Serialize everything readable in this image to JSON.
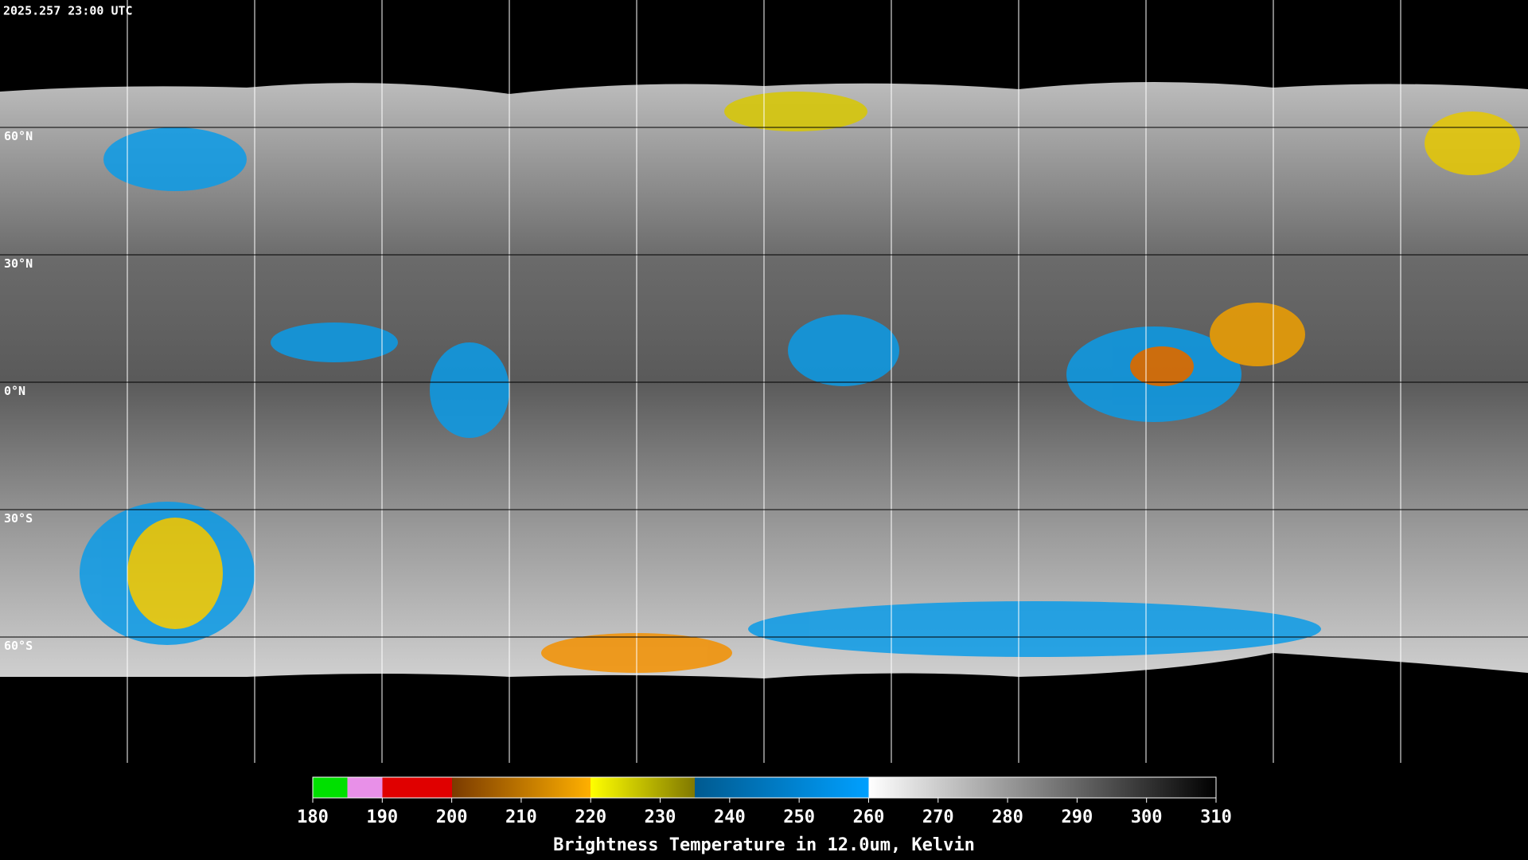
{
  "header": {
    "timestamp": "2025.257 23:00 UTC"
  },
  "map": {
    "latitude_labels": [
      "60°N",
      "30°N",
      "0°N",
      "30°S",
      "60°S"
    ]
  },
  "colorbar": {
    "range": [
      180,
      310
    ],
    "ticks": [
      180,
      190,
      200,
      210,
      220,
      230,
      240,
      250,
      260,
      270,
      280,
      290,
      300,
      310
    ],
    "title": "Brightness Temperature in 12.0um, Kelvin"
  }
}
